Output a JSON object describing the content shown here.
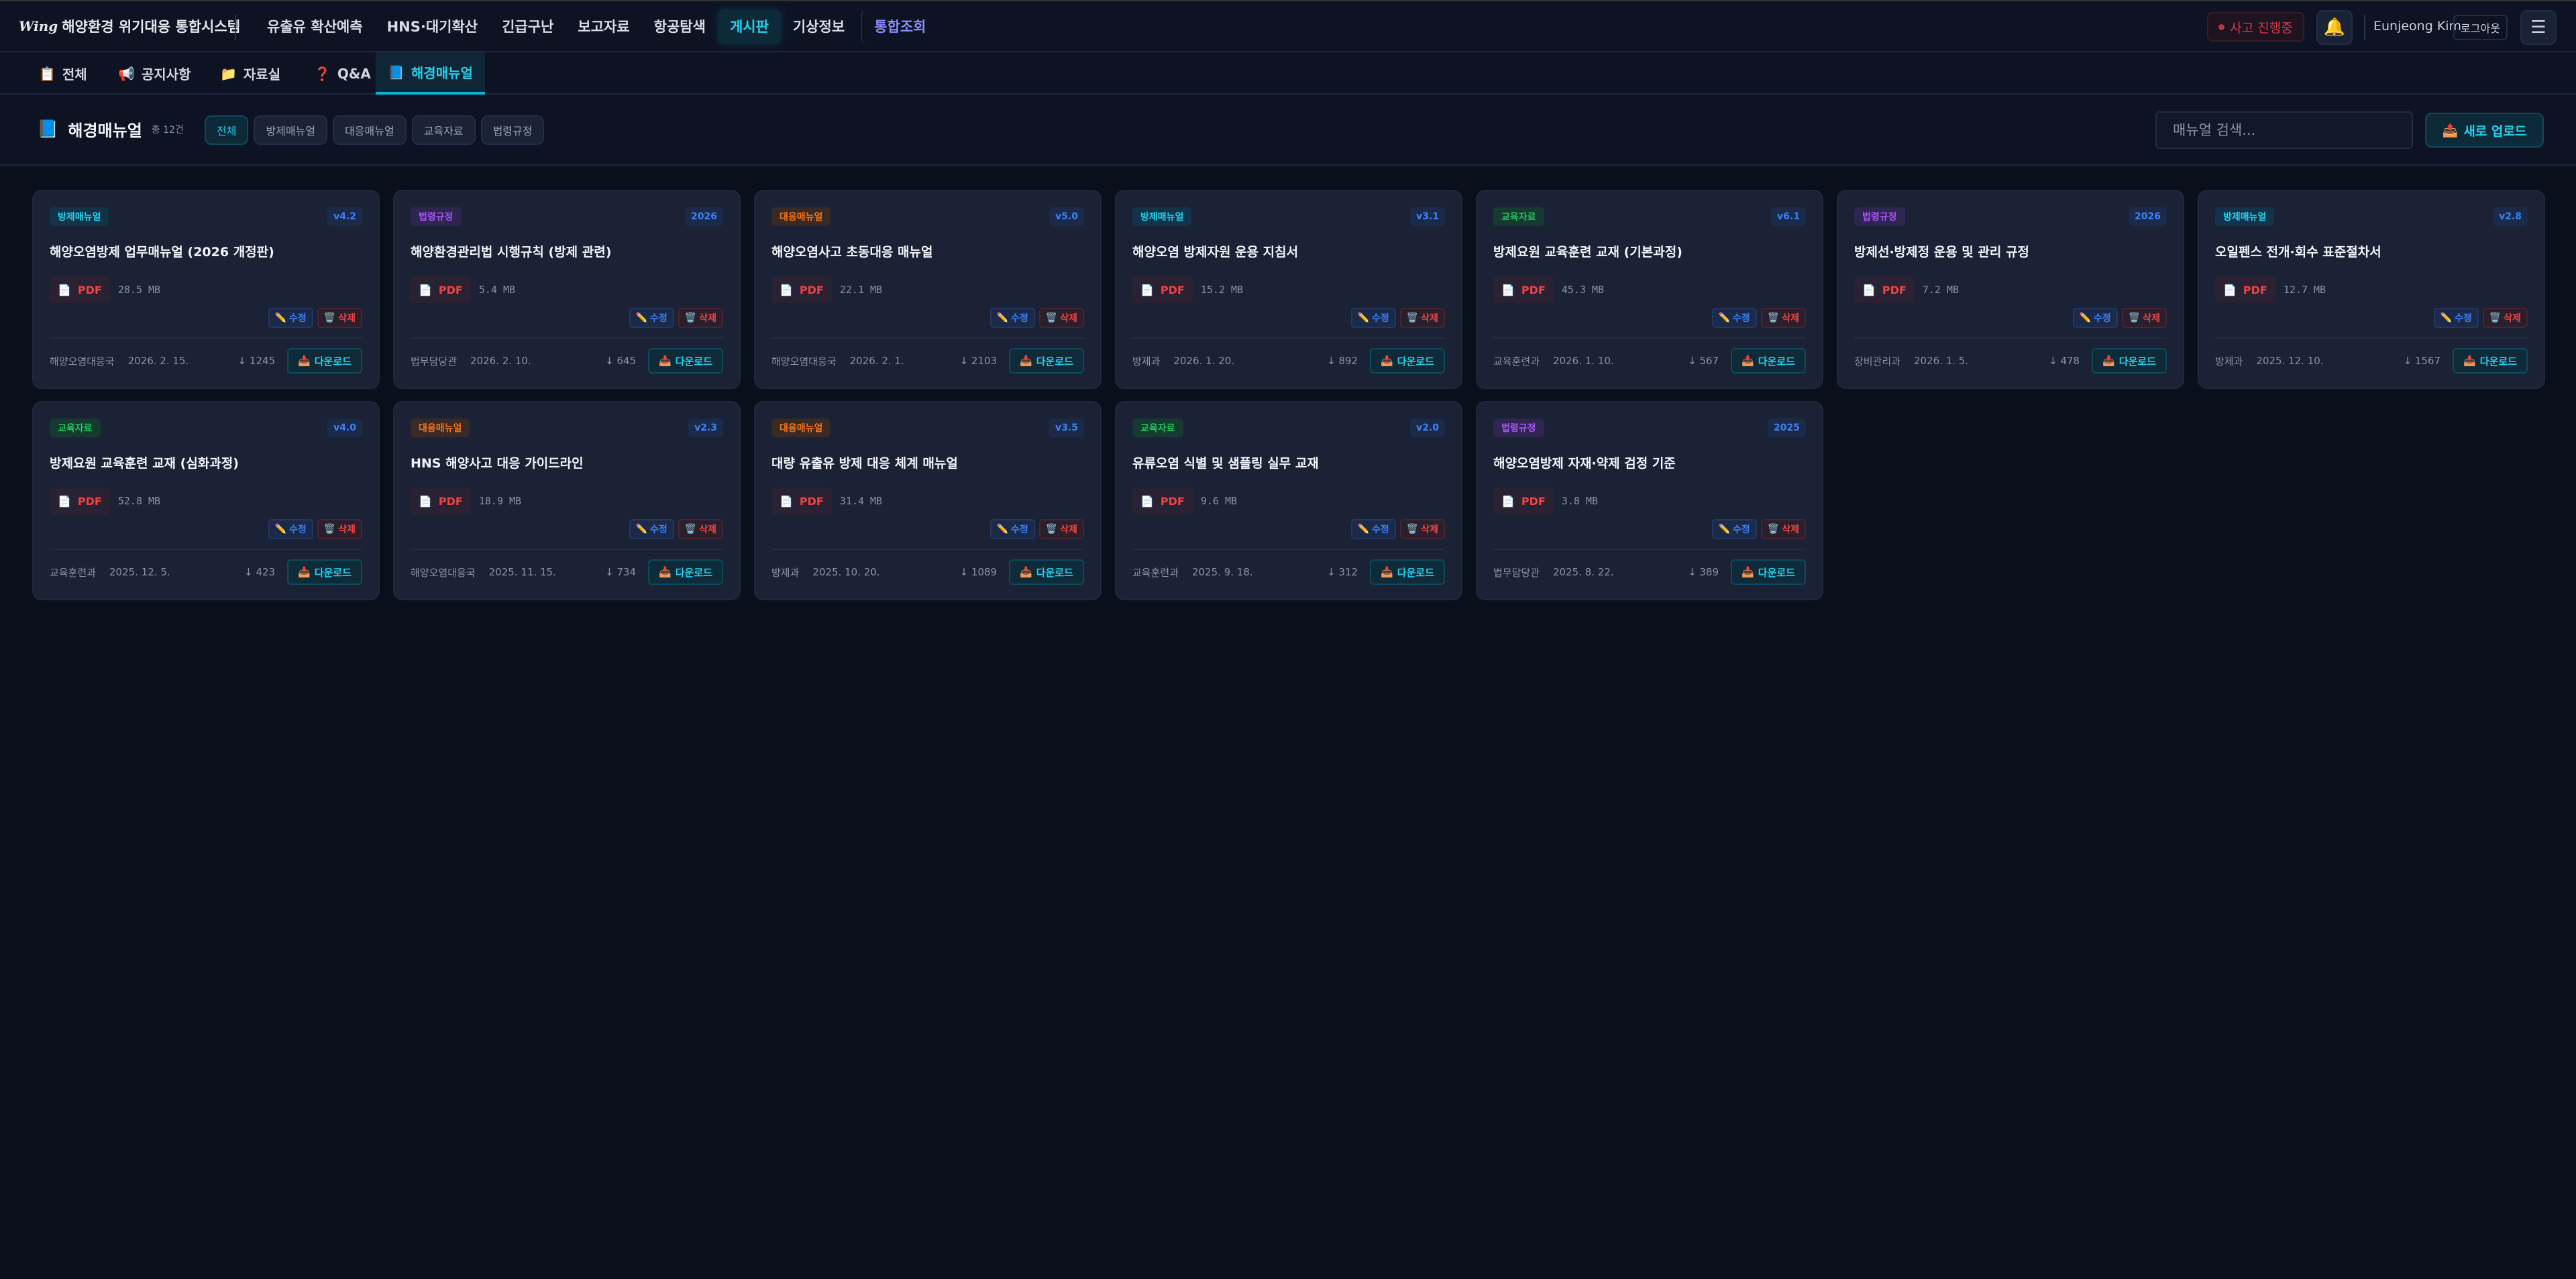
{
  "app": {
    "logo_mark": "Wing",
    "title": "해양환경 위기대응 통합시스템"
  },
  "nav": {
    "items": [
      "유출유 확산예측",
      "HNS·대기확산",
      "긴급구난",
      "보고자료",
      "항공탐색",
      "게시판",
      "기상정보"
    ],
    "special": "통합조회",
    "active": "게시판"
  },
  "top_right": {
    "alert": "사고 진행중",
    "bell_icon": "bell-icon",
    "user": "Eunjeong Kim",
    "logout": "로그아웃",
    "menu_icon": "hamburger-icon"
  },
  "subtabs": [
    {
      "icon": "📋",
      "label": "전체"
    },
    {
      "icon": "📢",
      "label": "공지사항"
    },
    {
      "icon": "📁",
      "label": "자료실"
    },
    {
      "icon": "❓",
      "label": "Q&A"
    },
    {
      "icon": "📘",
      "label": "해경매뉴얼"
    }
  ],
  "subtab_active": "해경매뉴얼",
  "header": {
    "icon": "📘",
    "title": "해경매뉴얼",
    "count": "총 12건",
    "filters": [
      "전체",
      "방제매뉴얼",
      "대응매뉴얼",
      "교육자료",
      "법령규정"
    ],
    "active_filter": "전체",
    "search_placeholder": "매뉴얼 검색...",
    "upload": "새로 업로드"
  },
  "card_labels": {
    "pdf": "PDF",
    "edit": "수정",
    "delete": "삭제",
    "download": "다운로드",
    "download_count_icon": "↓"
  },
  "category_colors": {
    "방제매뉴얼": {
      "fg": "#22d3ee",
      "bg": "#12334a"
    },
    "대응매뉴얼": {
      "fg": "#f97316",
      "bg": "#3a2a26"
    },
    "교육자료": {
      "fg": "#22c55e",
      "bg": "#163a30"
    },
    "법령규정": {
      "fg": "#a855f7",
      "bg": "#2e2550"
    }
  },
  "cards": [
    {
      "category": "방제매뉴얼",
      "version": "v4.2",
      "title": "해양오염방제 업무매뉴얼 (2026 개정판)",
      "size": "28.5 MB",
      "dept": "해양오염대응국",
      "date": "2026. 2. 15.",
      "downloads": "1245"
    },
    {
      "category": "법령규정",
      "version": "2026",
      "title": "해양환경관리법 시행규칙 (방제 관련)",
      "size": "5.4 MB",
      "dept": "법무담당관",
      "date": "2026. 2. 10.",
      "downloads": "645"
    },
    {
      "category": "대응매뉴얼",
      "version": "v5.0",
      "title": "해양오염사고 초동대응 매뉴얼",
      "size": "22.1 MB",
      "dept": "해양오염대응국",
      "date": "2026. 2. 1.",
      "downloads": "2103"
    },
    {
      "category": "방제매뉴얼",
      "version": "v3.1",
      "title": "해양오염 방제자원 운용 지침서",
      "size": "15.2 MB",
      "dept": "방제과",
      "date": "2026. 1. 20.",
      "downloads": "892"
    },
    {
      "category": "교육자료",
      "version": "v6.1",
      "title": "방제요원 교육훈련 교재 (기본과정)",
      "size": "45.3 MB",
      "dept": "교육훈련과",
      "date": "2026. 1. 10.",
      "downloads": "567"
    },
    {
      "category": "법령규정",
      "version": "2026",
      "title": "방제선·방제정 운용 및 관리 규정",
      "size": "7.2 MB",
      "dept": "장비관리과",
      "date": "2026. 1. 5.",
      "downloads": "478"
    },
    {
      "category": "방제매뉴얼",
      "version": "v2.8",
      "title": "오일펜스 전개·회수 표준절차서",
      "size": "12.7 MB",
      "dept": "방제과",
      "date": "2025. 12. 10.",
      "downloads": "1567"
    },
    {
      "category": "교육자료",
      "version": "v4.0",
      "title": "방제요원 교육훈련 교재 (심화과정)",
      "size": "52.8 MB",
      "dept": "교육훈련과",
      "date": "2025. 12. 5.",
      "downloads": "423"
    },
    {
      "category": "대응매뉴얼",
      "version": "v2.3",
      "title": "HNS 해양사고 대응 가이드라인",
      "size": "18.9 MB",
      "dept": "해양오염대응국",
      "date": "2025. 11. 15.",
      "downloads": "734"
    },
    {
      "category": "대응매뉴얼",
      "version": "v3.5",
      "title": "대량 유출유 방제 대응 체계 매뉴얼",
      "size": "31.4 MB",
      "dept": "방제과",
      "date": "2025. 10. 20.",
      "downloads": "1089"
    },
    {
      "category": "교육자료",
      "version": "v2.0",
      "title": "유류오염 식별 및 샘플링 실무 교재",
      "size": "9.6 MB",
      "dept": "교육훈련과",
      "date": "2025. 9. 18.",
      "downloads": "312"
    },
    {
      "category": "법령규정",
      "version": "2025",
      "title": "해양오염방제 자재·약제 검정 기준",
      "size": "3.8 MB",
      "dept": "법무담당관",
      "date": "2025. 8. 22.",
      "downloads": "389"
    }
  ]
}
